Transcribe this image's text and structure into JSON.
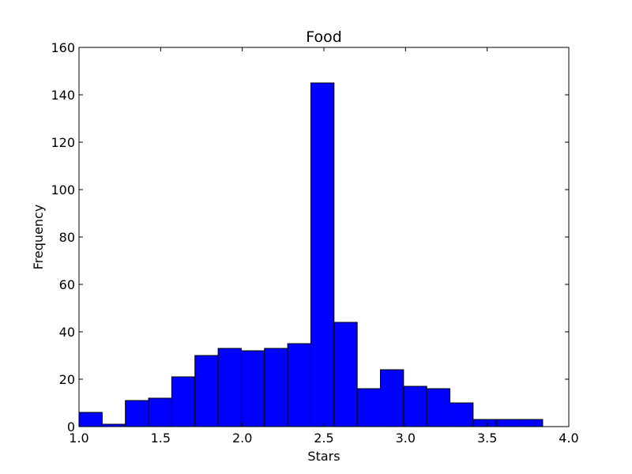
{
  "chart_data": {
    "type": "bar",
    "title": "Food",
    "xlabel": "Stars",
    "ylabel": "Frequency",
    "xlim": [
      1.0,
      4.0
    ],
    "ylim": [
      0,
      160
    ],
    "bar_color": "#0000ff",
    "edge_color": "#000000",
    "grid": false,
    "bins": [
      {
        "x0": 1.0,
        "x1": 1.142,
        "value": 6
      },
      {
        "x0": 1.142,
        "x1": 1.284,
        "value": 1
      },
      {
        "x0": 1.284,
        "x1": 1.426,
        "value": 11
      },
      {
        "x0": 1.426,
        "x1": 1.568,
        "value": 12
      },
      {
        "x0": 1.568,
        "x1": 1.71,
        "value": 21
      },
      {
        "x0": 1.71,
        "x1": 1.852,
        "value": 30
      },
      {
        "x0": 1.852,
        "x1": 1.994,
        "value": 33
      },
      {
        "x0": 1.994,
        "x1": 2.136,
        "value": 32
      },
      {
        "x0": 2.136,
        "x1": 2.278,
        "value": 33
      },
      {
        "x0": 2.278,
        "x1": 2.42,
        "value": 35
      },
      {
        "x0": 2.42,
        "x1": 2.562,
        "value": 145
      },
      {
        "x0": 2.562,
        "x1": 2.704,
        "value": 44
      },
      {
        "x0": 2.704,
        "x1": 2.846,
        "value": 16
      },
      {
        "x0": 2.846,
        "x1": 2.988,
        "value": 24
      },
      {
        "x0": 2.988,
        "x1": 3.13,
        "value": 17
      },
      {
        "x0": 3.13,
        "x1": 3.272,
        "value": 16
      },
      {
        "x0": 3.272,
        "x1": 3.414,
        "value": 10
      },
      {
        "x0": 3.414,
        "x1": 3.556,
        "value": 3
      },
      {
        "x0": 3.556,
        "x1": 3.698,
        "value": 3
      },
      {
        "x0": 3.698,
        "x1": 3.84,
        "value": 3
      }
    ],
    "x_ticks": [
      "1.0",
      "1.5",
      "2.0",
      "2.5",
      "3.0",
      "3.5",
      "4.0"
    ],
    "y_ticks": [
      "0",
      "20",
      "40",
      "60",
      "80",
      "100",
      "120",
      "140",
      "160"
    ]
  }
}
